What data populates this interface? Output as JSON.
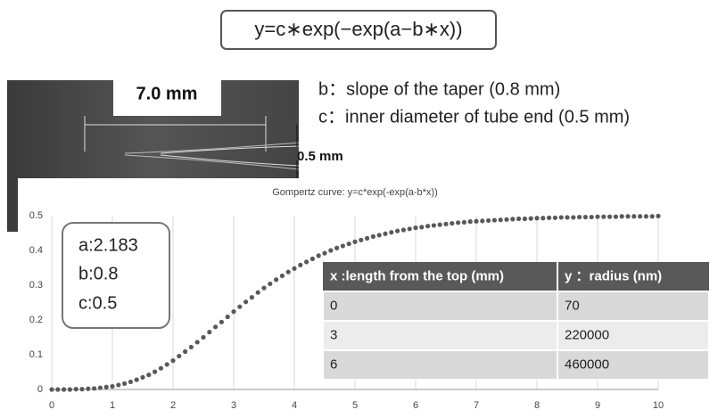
{
  "formula": "y=c∗exp(−exp(a−b∗x))",
  "photo": {
    "length_label": "7.0 mm",
    "diameter_label": "0.5 mm"
  },
  "notes": [
    "b：slope of the taper (0.8 mm)",
    "c：inner diameter of tube end (0.5 mm)"
  ],
  "params": [
    "a:2.183",
    "b:0.8",
    "c:0.5"
  ],
  "table": {
    "header": [
      "x :length from the top (mm)",
      "y ：radius (nm)"
    ],
    "rows": [
      [
        "0",
        "70"
      ],
      [
        "3",
        "220000"
      ],
      [
        "6",
        "460000"
      ]
    ]
  },
  "chart_data": {
    "type": "scatter",
    "title": "Gompertz curve: y=c*exp(-exp(a-b*x))",
    "x": [
      0,
      0.1,
      0.2,
      0.3,
      0.4,
      0.5,
      0.6,
      0.7,
      0.8,
      0.9,
      1,
      1.1,
      1.2,
      1.3,
      1.4,
      1.5,
      1.6,
      1.7,
      1.8,
      1.9,
      2,
      2.1,
      2.2,
      2.3,
      2.4,
      2.5,
      2.6,
      2.7,
      2.8,
      2.9,
      3,
      3.1,
      3.2,
      3.3,
      3.4,
      3.5,
      3.6,
      3.7,
      3.8,
      3.9,
      4,
      4.1,
      4.2,
      4.3,
      4.4,
      4.5,
      4.6,
      4.7,
      4.8,
      4.9,
      5,
      5.1,
      5.2,
      5.3,
      5.4,
      5.5,
      5.6,
      5.7,
      5.8,
      5.9,
      6,
      6.1,
      6.2,
      6.3,
      6.4,
      6.5,
      6.6,
      6.7,
      6.8,
      6.9,
      7,
      7.1,
      7.2,
      7.3,
      7.4,
      7.5,
      7.6,
      7.7,
      7.8,
      7.9,
      8,
      8.1,
      8.2,
      8.3,
      8.4,
      8.5,
      8.6,
      8.7,
      8.8,
      8.9,
      9,
      9.1,
      9.2,
      9.3,
      9.4,
      9.5,
      9.6,
      9.7,
      9.8,
      9.9,
      10
    ],
    "values": [
      0,
      0,
      0,
      0,
      0.001,
      0.001,
      0.002,
      0.003,
      0.005,
      0.007,
      0.009,
      0.013,
      0.017,
      0.022,
      0.028,
      0.035,
      0.042,
      0.051,
      0.061,
      0.072,
      0.083,
      0.096,
      0.109,
      0.122,
      0.136,
      0.15,
      0.165,
      0.18,
      0.194,
      0.209,
      0.224,
      0.238,
      0.252,
      0.265,
      0.279,
      0.292,
      0.304,
      0.316,
      0.327,
      0.338,
      0.348,
      0.358,
      0.367,
      0.376,
      0.385,
      0.392,
      0.4,
      0.407,
      0.413,
      0.419,
      0.425,
      0.43,
      0.435,
      0.44,
      0.444,
      0.448,
      0.452,
      0.456,
      0.459,
      0.462,
      0.465,
      0.467,
      0.47,
      0.472,
      0.474,
      0.476,
      0.478,
      0.48,
      0.481,
      0.483,
      0.484,
      0.485,
      0.486,
      0.487,
      0.488,
      0.489,
      0.49,
      0.491,
      0.491,
      0.492,
      0.493,
      0.493,
      0.494,
      0.494,
      0.495,
      0.495,
      0.495,
      0.496,
      0.496,
      0.496,
      0.497,
      0.497,
      0.497,
      0.497,
      0.498,
      0.498,
      0.498,
      0.498,
      0.498,
      0.498,
      0.499
    ],
    "color": "#595959",
    "xlim": [
      0,
      10
    ],
    "ylim": [
      0,
      0.5
    ],
    "xticks": [
      0,
      1,
      2,
      3,
      4,
      5,
      6,
      7,
      8,
      9,
      10
    ],
    "yticks": [
      0,
      0.1,
      0.2,
      0.3,
      0.4,
      0.5
    ],
    "grid": "x"
  }
}
